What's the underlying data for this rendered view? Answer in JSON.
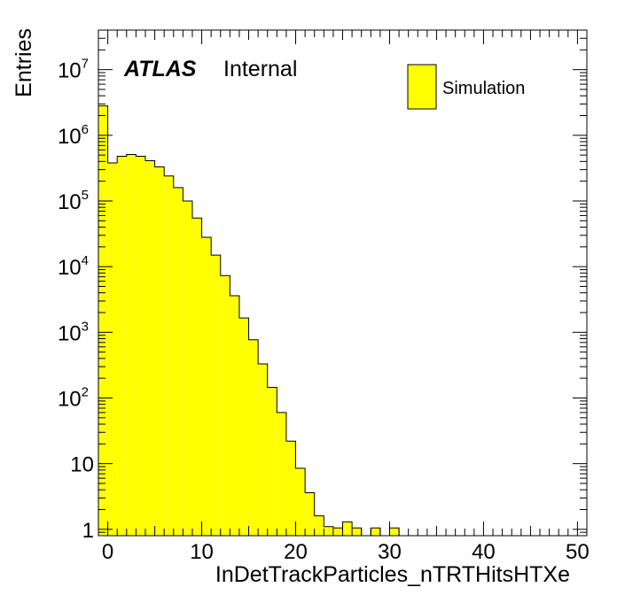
{
  "chart_data": {
    "type": "bar",
    "style": "histogram",
    "xlabel": "InDetTrackParticles_nTRTHitsHTXe",
    "ylabel": "Entries",
    "label_bold": "ATLAS",
    "label_status": "Internal",
    "log_y": true,
    "xlim": [
      -1,
      51
    ],
    "ylim": [
      0.8,
      40000000
    ],
    "grid": false,
    "legend_position": "top-right",
    "series": [
      {
        "name": "Simulation",
        "color": "#ffff00",
        "bin_width": 1,
        "bin_starts": [
          -1,
          0,
          1,
          2,
          3,
          4,
          5,
          6,
          7,
          8,
          9,
          10,
          11,
          12,
          13,
          14,
          15,
          16,
          17,
          18,
          19,
          20,
          21,
          22,
          23,
          24,
          25,
          26,
          27,
          28,
          29,
          30
        ],
        "values": [
          2800000,
          380000,
          480000,
          510000,
          480000,
          410000,
          330000,
          240000,
          160000,
          100000,
          55000,
          28000,
          15000,
          7300,
          3600,
          1650,
          770,
          330,
          145,
          60,
          22,
          8.5,
          3.6,
          1.6,
          1.1,
          1.05,
          1.3,
          1.05,
          0.4,
          1.05,
          0.4,
          1.05
        ]
      }
    ],
    "x_ticks": [
      {
        "value": 0,
        "label": "0"
      },
      {
        "value": 10,
        "label": "10"
      },
      {
        "value": 20,
        "label": "20"
      },
      {
        "value": 30,
        "label": "30"
      },
      {
        "value": 40,
        "label": "40"
      },
      {
        "value": 50,
        "label": "50"
      }
    ],
    "y_ticks": [
      {
        "value": 1,
        "base": "1",
        "exp": ""
      },
      {
        "value": 10,
        "base": "10",
        "exp": ""
      },
      {
        "value": 100,
        "base": "10",
        "exp": "2"
      },
      {
        "value": 1000,
        "base": "10",
        "exp": "3"
      },
      {
        "value": 10000,
        "base": "10",
        "exp": "4"
      },
      {
        "value": 100000,
        "base": "10",
        "exp": "5"
      },
      {
        "value": 1000000,
        "base": "10",
        "exp": "6"
      },
      {
        "value": 10000000,
        "base": "10",
        "exp": "7"
      }
    ]
  }
}
